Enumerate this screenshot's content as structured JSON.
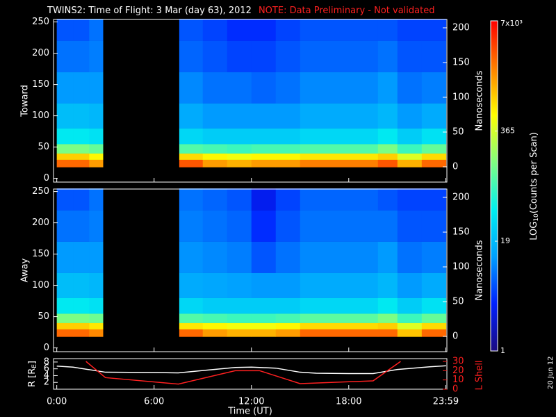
{
  "title": "TWINS2: Time of Flight:  3 Mar (day  63), 2012",
  "note": "NOTE: Data Preliminary - Not validated",
  "stamp": "20 Jun 12",
  "colorbar": {
    "label": [
      "LOG",
      "10",
      "(Counts per Scan)"
    ],
    "clim": [
      1,
      7000
    ],
    "log": true,
    "ticks": [
      1,
      19,
      365,
      {
        "value": 7000,
        "label": "7x10³"
      }
    ],
    "colormap": [
      "#1a0a80",
      "#0020ff",
      "#00a0ff",
      "#00f0f0",
      "#80ff80",
      "#ffff00",
      "#ff8000",
      "#ff0000"
    ]
  },
  "chart_data": [
    {
      "type": "heatmap",
      "ylabel": "Toward",
      "y2label": "Nanoseconds",
      "x_bins": [
        0,
        1,
        2,
        2.85,
        7.55,
        9,
        10.5,
        12,
        13.5,
        15,
        19.8,
        21,
        22.5,
        24
      ],
      "y_bins": [
        18,
        30,
        40,
        55,
        80,
        120,
        170,
        220,
        255
      ],
      "values": [
        [
          2500,
          2500,
          1500,
          null,
          3000,
          1500,
          1200,
          1500,
          1500,
          2000,
          3000,
          1200,
          2500
        ],
        [
          900,
          900,
          600,
          null,
          800,
          600,
          500,
          600,
          600,
          700,
          900,
          400,
          800
        ],
        [
          150,
          150,
          120,
          null,
          100,
          90,
          80,
          90,
          90,
          100,
          150,
          80,
          120
        ],
        [
          40,
          40,
          35,
          null,
          30,
          25,
          25,
          25,
          25,
          30,
          40,
          25,
          35
        ],
        [
          20,
          20,
          18,
          null,
          15,
          12,
          12,
          12,
          12,
          15,
          18,
          12,
          15
        ],
        [
          12,
          12,
          12,
          null,
          10,
          8,
          8,
          7,
          8,
          10,
          12,
          8,
          9
        ],
        [
          8,
          8,
          9,
          null,
          7,
          6,
          5,
          5,
          6,
          7,
          8,
          6,
          6
        ],
        [
          6,
          6,
          8,
          null,
          6,
          5,
          4,
          4,
          5,
          6,
          6,
          5,
          5
        ]
      ],
      "ylim": [
        -6,
        254
      ],
      "yticks": [
        0,
        50,
        100,
        150,
        200,
        250
      ],
      "y2lim": [
        -22,
        212
      ],
      "y2ticks": [
        0,
        50,
        100,
        150,
        200
      ]
    },
    {
      "type": "heatmap",
      "ylabel": "Away",
      "y2label": "Nanoseconds",
      "x_bins": [
        0,
        1,
        2,
        2.85,
        7.55,
        9,
        10.5,
        12,
        13.5,
        15,
        19.8,
        21,
        22.5,
        24
      ],
      "y_bins": [
        18,
        30,
        40,
        55,
        80,
        120,
        170,
        220,
        255
      ],
      "values": [
        [
          2500,
          2500,
          1800,
          null,
          2500,
          1500,
          1200,
          1200,
          1500,
          2500,
          2500,
          1000,
          2500
        ],
        [
          900,
          900,
          700,
          null,
          700,
          600,
          500,
          500,
          600,
          800,
          900,
          400,
          800
        ],
        [
          150,
          150,
          130,
          null,
          100,
          90,
          80,
          80,
          90,
          110,
          150,
          80,
          120
        ],
        [
          40,
          40,
          35,
          null,
          30,
          25,
          25,
          25,
          25,
          30,
          40,
          25,
          35
        ],
        [
          20,
          20,
          18,
          null,
          15,
          14,
          13,
          12,
          12,
          15,
          18,
          12,
          15
        ],
        [
          12,
          12,
          12,
          null,
          11,
          10,
          9,
          6,
          8,
          10,
          12,
          8,
          9
        ],
        [
          8,
          8,
          9,
          null,
          9,
          8,
          7,
          4,
          6,
          8,
          8,
          6,
          6
        ],
        [
          6,
          6,
          8,
          null,
          8,
          7,
          6,
          3,
          5,
          7,
          6,
          5,
          5
        ]
      ],
      "ylim": [
        -6,
        254
      ],
      "yticks": [
        0,
        50,
        100,
        150,
        200,
        250
      ],
      "y2lim": [
        -22,
        212
      ],
      "y2ticks": [
        0,
        50,
        100,
        150,
        200
      ]
    },
    {
      "type": "line",
      "ylabel": [
        "R [R",
        "E",
        "]"
      ],
      "y2label": "L Shell",
      "xlabel": "Time (UT)",
      "xlim": [
        -0.2,
        24.05
      ],
      "xticks": [
        {
          "value": 0,
          "label": "0:00"
        },
        {
          "value": 6,
          "label": "6:00"
        },
        {
          "value": 12,
          "label": "12:00"
        },
        {
          "value": 18,
          "label": "18:00"
        },
        {
          "value": 23.983,
          "label": "23:59"
        }
      ],
      "ylim": [
        0,
        9
      ],
      "yticks": [
        2,
        4,
        6,
        8
      ],
      "y2lim": [
        0,
        33
      ],
      "y2ticks": [
        0,
        10,
        20,
        30
      ],
      "series": [
        {
          "color": "#ffffff",
          "x": [
            0,
            1,
            3,
            6,
            7.5,
            9,
            11,
            12,
            13.5,
            15,
            16,
            18,
            19.5,
            21,
            23,
            24
          ],
          "values": [
            6.8,
            6.5,
            5,
            4.9,
            4.8,
            5.5,
            6.4,
            6.5,
            6.2,
            5,
            4.7,
            4.6,
            4.6,
            5.8,
            6.6,
            6.9
          ]
        },
        {
          "color": "#ff2020",
          "axis": "y2",
          "x": [
            1.8,
            3,
            7.5,
            11,
            12.5,
            15,
            19.5,
            21.2
          ],
          "values": [
            30,
            12.5,
            5.5,
            20,
            20,
            6,
            9,
            30
          ]
        }
      ]
    }
  ]
}
